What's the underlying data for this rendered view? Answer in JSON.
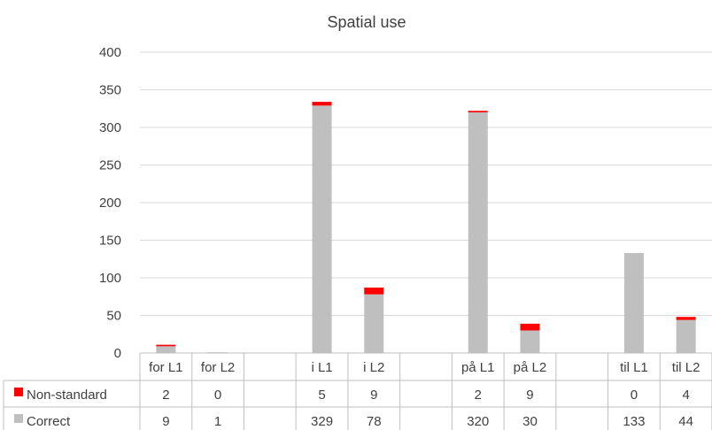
{
  "chart_data": {
    "type": "bar",
    "stacked": true,
    "title": "Spatial use",
    "xlabel": "",
    "ylabel": "",
    "ylim": [
      0,
      400
    ],
    "yticks": [
      "0",
      "50",
      "100",
      "150",
      "200",
      "250",
      "300",
      "350",
      "400"
    ],
    "grid": true,
    "legend": "data-table",
    "categories": [
      "for L1",
      "for L2",
      "",
      "i L1",
      "i L2",
      "",
      "på L1",
      "på L2",
      "",
      "til L1",
      "til L2"
    ],
    "series": [
      {
        "name": "Non-standard",
        "color": "#ff0000",
        "values": [
          2,
          0,
          null,
          5,
          9,
          null,
          2,
          9,
          null,
          0,
          4
        ],
        "labels": [
          "2",
          "0",
          "",
          "5",
          "9",
          "",
          "2",
          "9",
          "",
          "0",
          "4"
        ]
      },
      {
        "name": "Correct",
        "color": "#bfbfbf",
        "values": [
          9,
          1,
          null,
          329,
          78,
          null,
          320,
          30,
          null,
          133,
          44
        ],
        "labels": [
          "9",
          "1",
          "",
          "329",
          "78",
          "",
          "320",
          "30",
          "",
          "133",
          "44"
        ]
      }
    ]
  }
}
